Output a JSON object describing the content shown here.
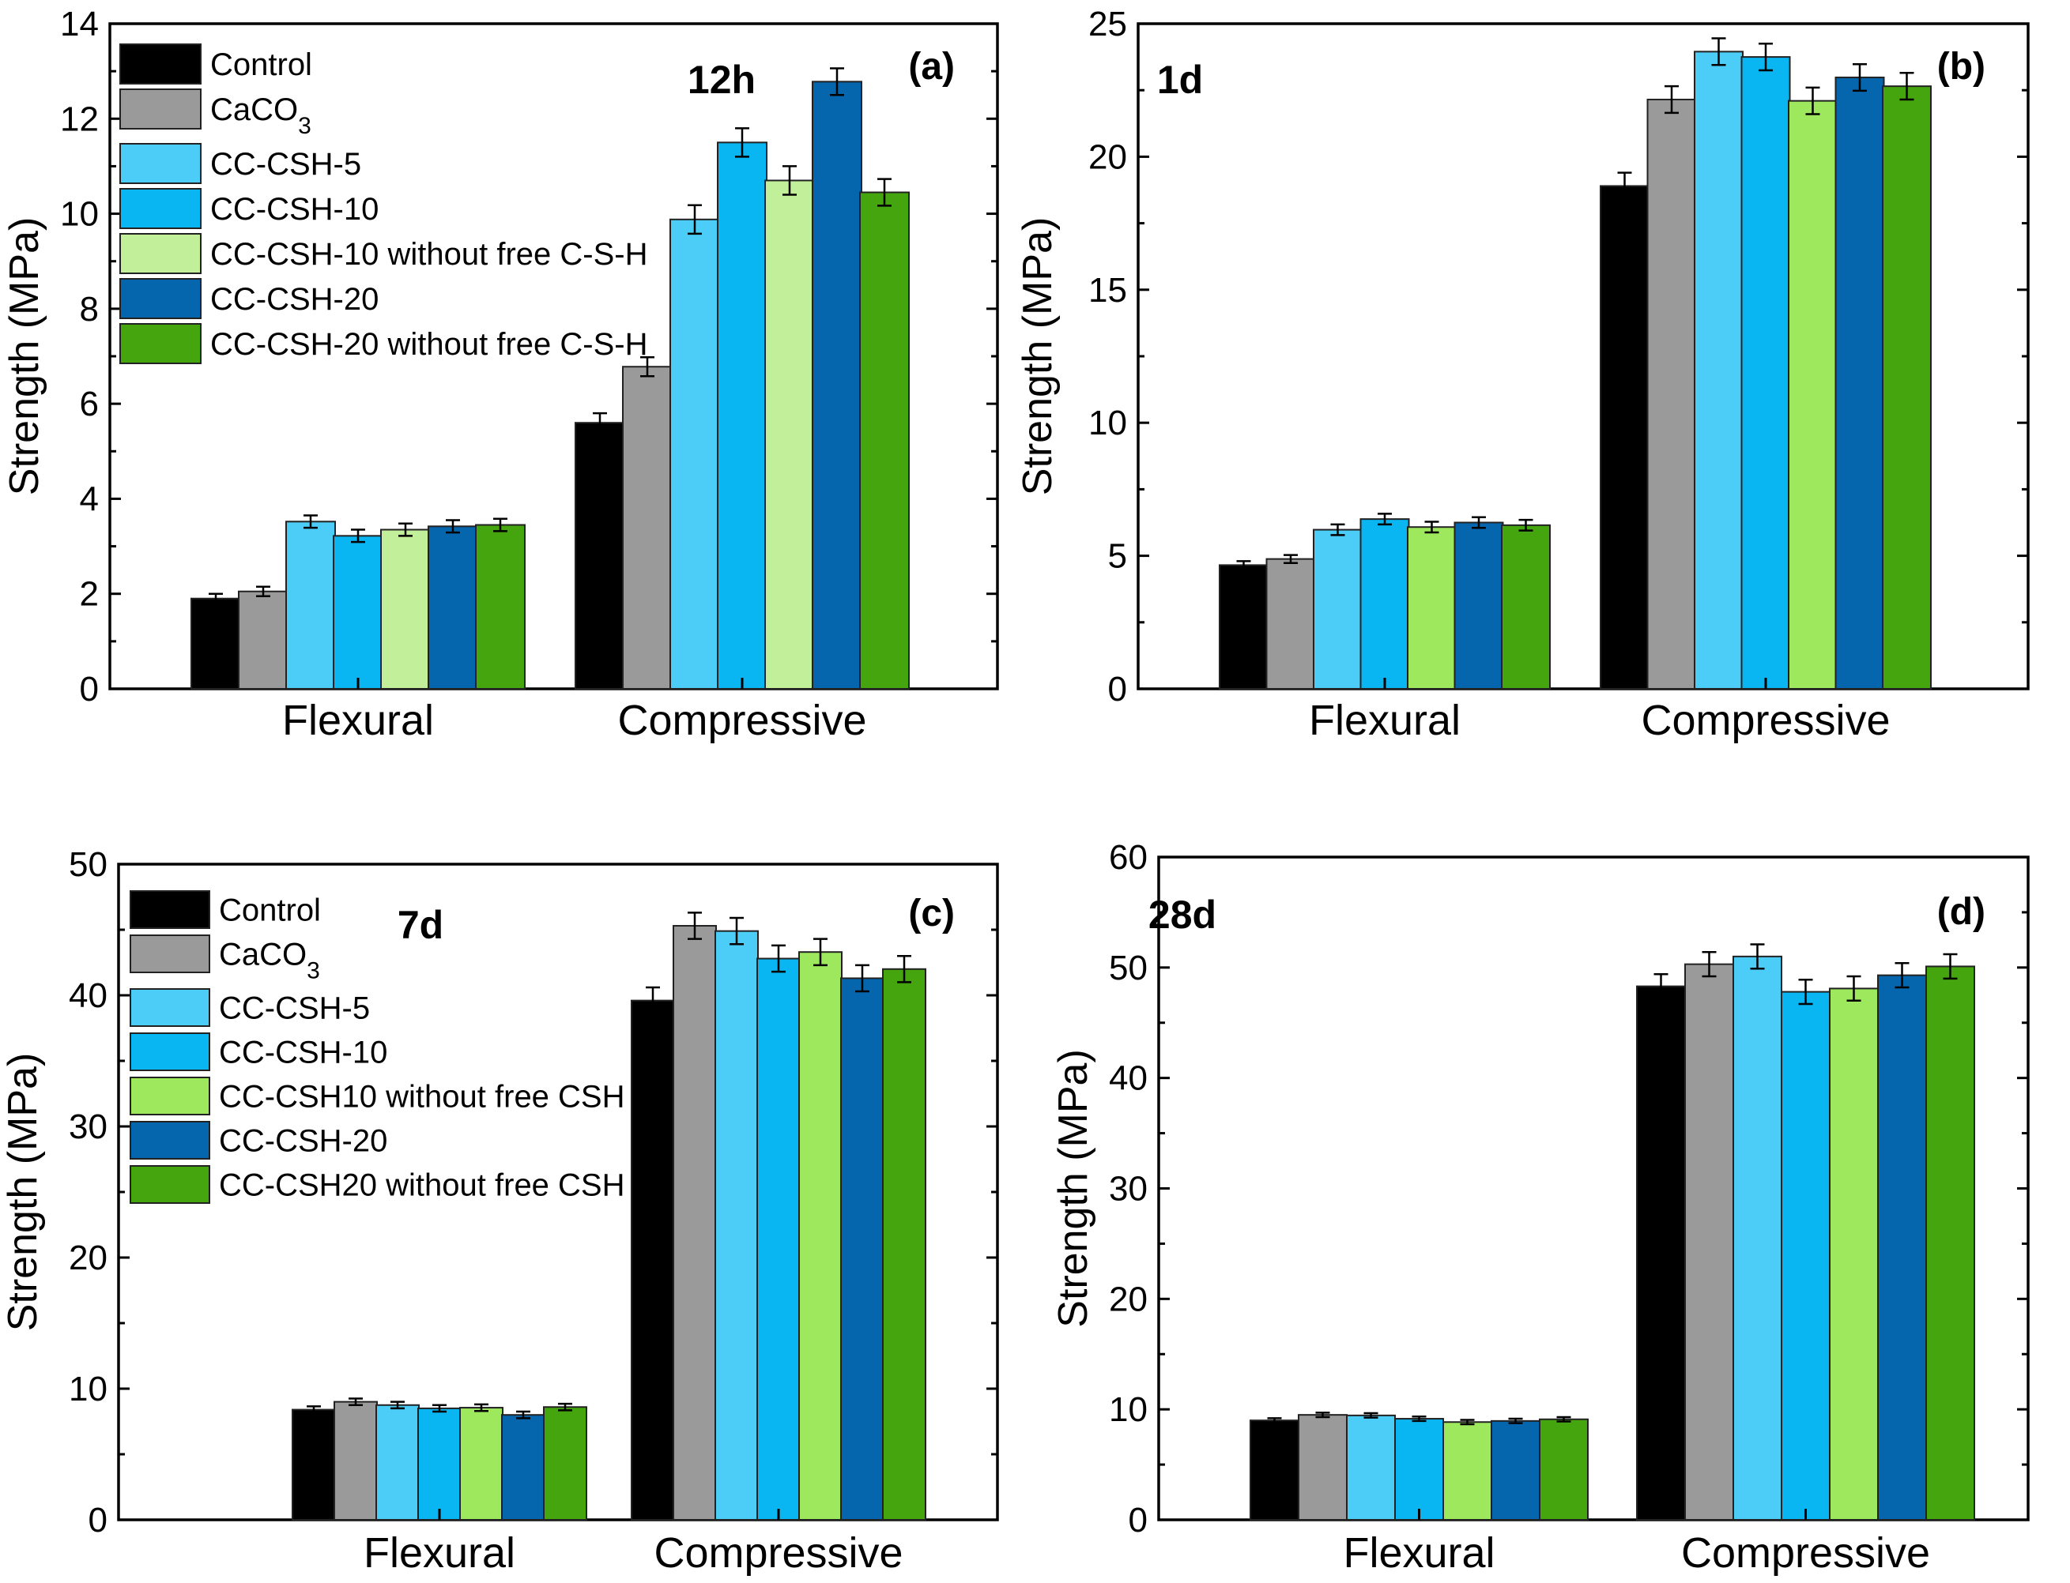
{
  "figure": {
    "colors": {
      "Control": "#000000",
      "CaCO3": "#9a9a9a",
      "CC-CSH-5": "#4ccdf7",
      "CC-CSH-10": "#09b6f2",
      "CC-CSH-10 without free": "#9ee85e",
      "CC-CSH-10 without free light": "#c2f09a",
      "CC-CSH-20": "#0566ae",
      "CC-CSH-20 without free": "#45a50e"
    }
  },
  "chart_data": [
    {
      "type": "bar",
      "panel": "(a)",
      "time": "12h",
      "ylabel": "Strength (MPa)",
      "ylim": [
        0,
        14
      ],
      "yticks": [
        "0",
        "2",
        "4",
        "6",
        "8",
        "10",
        "12",
        "14"
      ],
      "categories": [
        "Flexural",
        "Compressive"
      ],
      "legend": [
        {
          "label": "Control",
          "sub": ""
        },
        {
          "label": "CaCO",
          "sub": "3"
        },
        {
          "label": "CC-CSH-5",
          "sub": ""
        },
        {
          "label": "CC-CSH-10",
          "sub": ""
        },
        {
          "label": "CC-CSH-10 without free C-S-H",
          "sub": ""
        },
        {
          "label": "CC-CSH-20",
          "sub": ""
        },
        {
          "label": "CC-CSH-20 without free C-S-H",
          "sub": ""
        }
      ],
      "series": [
        {
          "name": "Control",
          "values": [
            1.9,
            5.6
          ],
          "errors": [
            0.1,
            0.2
          ]
        },
        {
          "name": "CaCO3",
          "values": [
            2.05,
            6.78
          ],
          "errors": [
            0.1,
            0.2
          ]
        },
        {
          "name": "CC-CSH-5",
          "values": [
            3.52,
            9.88
          ],
          "errors": [
            0.13,
            0.3
          ]
        },
        {
          "name": "CC-CSH-10",
          "values": [
            3.22,
            11.5
          ],
          "errors": [
            0.13,
            0.3
          ]
        },
        {
          "name": "CC-CSH-10 without free C-S-H",
          "values": [
            3.35,
            10.7
          ],
          "errors": [
            0.13,
            0.3
          ]
        },
        {
          "name": "CC-CSH-20",
          "values": [
            3.42,
            12.78
          ],
          "errors": [
            0.13,
            0.28
          ]
        },
        {
          "name": "CC-CSH-20 without free C-S-H",
          "values": [
            3.45,
            10.45
          ],
          "errors": [
            0.13,
            0.28
          ]
        }
      ]
    },
    {
      "type": "bar",
      "panel": "(b)",
      "time": "1d",
      "ylabel": "Strength (MPa)",
      "ylim": [
        0,
        25
      ],
      "yticks": [
        "0",
        "5",
        "10",
        "15",
        "20",
        "25"
      ],
      "categories": [
        "Flexural",
        "Compressive"
      ],
      "series": [
        {
          "name": "Control",
          "values": [
            4.65,
            18.9
          ],
          "errors": [
            0.15,
            0.5
          ]
        },
        {
          "name": "CaCO3",
          "values": [
            4.88,
            22.15
          ],
          "errors": [
            0.15,
            0.5
          ]
        },
        {
          "name": "CC-CSH-5",
          "values": [
            5.98,
            23.95
          ],
          "errors": [
            0.2,
            0.5
          ]
        },
        {
          "name": "CC-CSH-10",
          "values": [
            6.38,
            23.75
          ],
          "errors": [
            0.2,
            0.5
          ]
        },
        {
          "name": "CC-CSH-10 without free C-S-H",
          "values": [
            6.08,
            22.1
          ],
          "errors": [
            0.2,
            0.5
          ]
        },
        {
          "name": "CC-CSH-20",
          "values": [
            6.25,
            22.98
          ],
          "errors": [
            0.2,
            0.5
          ]
        },
        {
          "name": "CC-CSH-20 without free C-S-H",
          "values": [
            6.15,
            22.65
          ],
          "errors": [
            0.2,
            0.5
          ]
        }
      ]
    },
    {
      "type": "bar",
      "panel": "(c)",
      "time": "7d",
      "ylabel": "Strength (MPa)",
      "ylim": [
        0,
        50
      ],
      "yticks": [
        "0",
        "10",
        "20",
        "30",
        "40",
        "50"
      ],
      "categories": [
        "Flexural",
        "Compressive"
      ],
      "legend": [
        {
          "label": "Control",
          "sub": ""
        },
        {
          "label": "CaCO",
          "sub": "3"
        },
        {
          "label": "CC-CSH-5",
          "sub": ""
        },
        {
          "label": "CC-CSH-10",
          "sub": ""
        },
        {
          "label": "CC-CSH10 without free CSH",
          "sub": ""
        },
        {
          "label": "CC-CSH-20",
          "sub": ""
        },
        {
          "label": "CC-CSH20 without free CSH",
          "sub": ""
        }
      ],
      "series": [
        {
          "name": "Control",
          "values": [
            8.4,
            39.6
          ],
          "errors": [
            0.25,
            1.0
          ]
        },
        {
          "name": "CaCO3",
          "values": [
            9.0,
            45.3
          ],
          "errors": [
            0.25,
            1.0
          ]
        },
        {
          "name": "CC-CSH-5",
          "values": [
            8.75,
            44.9
          ],
          "errors": [
            0.25,
            1.0
          ]
        },
        {
          "name": "CC-CSH-10",
          "values": [
            8.5,
            42.8
          ],
          "errors": [
            0.25,
            1.0
          ]
        },
        {
          "name": "CC-CSH10 without free CSH",
          "values": [
            8.55,
            43.3
          ],
          "errors": [
            0.25,
            1.0
          ]
        },
        {
          "name": "CC-CSH-20",
          "values": [
            8.0,
            41.3
          ],
          "errors": [
            0.25,
            1.0
          ]
        },
        {
          "name": "CC-CSH20 without free CSH",
          "values": [
            8.6,
            42.0
          ],
          "errors": [
            0.25,
            1.0
          ]
        }
      ]
    },
    {
      "type": "bar",
      "panel": "(d)",
      "time": "28d",
      "ylabel": "Strength (MPa)",
      "ylim": [
        0,
        60
      ],
      "yticks": [
        "0",
        "10",
        "20",
        "30",
        "40",
        "50",
        "60"
      ],
      "categories": [
        "Flexural",
        "Compressive"
      ],
      "series": [
        {
          "name": "Control",
          "values": [
            9.0,
            48.3
          ],
          "errors": [
            0.2,
            1.1
          ]
        },
        {
          "name": "CaCO3",
          "values": [
            9.5,
            50.3
          ],
          "errors": [
            0.2,
            1.1
          ]
        },
        {
          "name": "CC-CSH-5",
          "values": [
            9.45,
            51.0
          ],
          "errors": [
            0.2,
            1.1
          ]
        },
        {
          "name": "CC-CSH-10",
          "values": [
            9.15,
            47.8
          ],
          "errors": [
            0.2,
            1.1
          ]
        },
        {
          "name": "CC-CSH-10 without free C-S-H",
          "values": [
            8.85,
            48.1
          ],
          "errors": [
            0.2,
            1.1
          ]
        },
        {
          "name": "CC-CSH-20",
          "values": [
            8.95,
            49.3
          ],
          "errors": [
            0.2,
            1.1
          ]
        },
        {
          "name": "CC-CSH-20 without free C-S-H",
          "values": [
            9.1,
            50.1
          ],
          "errors": [
            0.2,
            1.1
          ]
        }
      ]
    }
  ]
}
